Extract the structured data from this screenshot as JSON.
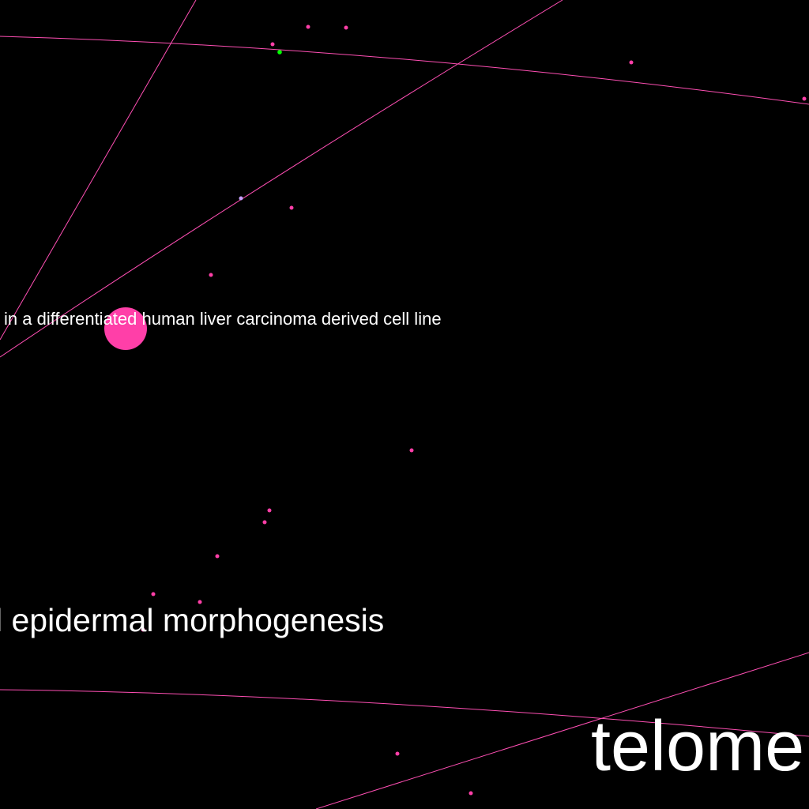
{
  "colors": {
    "background": "#000000",
    "edge": "#ff4fb4",
    "node": "#ff3fa8",
    "node_green": "#00ff00",
    "node_lavender": "#c8a0ff",
    "label": "#ffffff"
  },
  "labels": {
    "liver_cell_line": "in a differentiated human liver carcinoma derived cell line",
    "epidermal": "l epidermal morphogenesis",
    "telomere": "telome"
  }
}
